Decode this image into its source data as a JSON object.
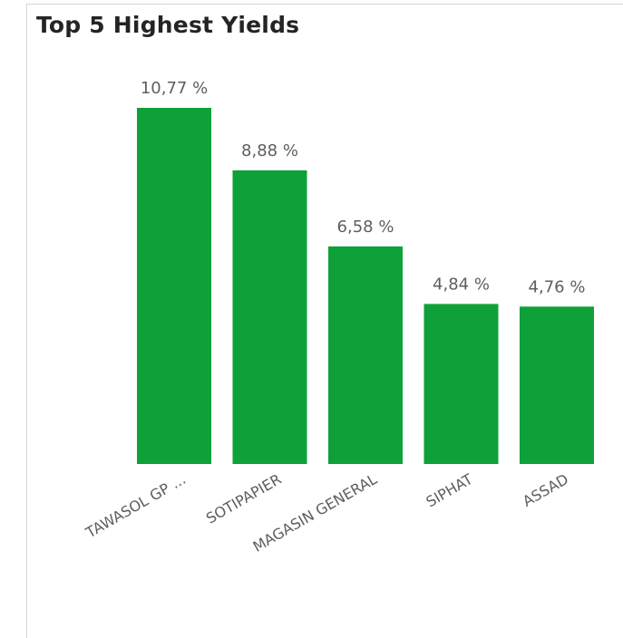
{
  "chart_data": {
    "type": "bar",
    "title": "Top 5 Highest Yields",
    "categories": [
      "TAWASOL GP ...",
      "SOTIPAPIER",
      "MAGASIN GENERAL",
      "SIPHAT",
      "ASSAD"
    ],
    "values": [
      10.77,
      8.88,
      6.58,
      4.84,
      4.76
    ],
    "value_labels": [
      "10,77 %",
      "8,88 %",
      "6,58 %",
      "4,84 %",
      "4,76 %"
    ],
    "ylim": [
      0,
      10.77
    ],
    "grid": false,
    "legend": "none",
    "bar_color": "#0ea13a"
  }
}
